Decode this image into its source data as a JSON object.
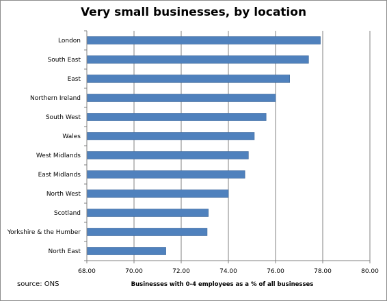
{
  "chart_data": {
    "type": "bar",
    "orientation": "horizontal",
    "title": "Very small businesses, by location",
    "xlabel": "Businesses with 0-4 employees as a % of all businesses",
    "ylabel": "",
    "source": "source: ONS",
    "categories": [
      "London",
      "South East",
      "East",
      "Northern Ireland",
      "South West",
      "Wales",
      "West Midlands",
      "East Midlands",
      "North West",
      "Scotland",
      "Yorkshire & the Humber",
      "North East"
    ],
    "values": [
      77.9,
      77.4,
      76.6,
      76.0,
      75.6,
      75.1,
      74.85,
      74.7,
      74.0,
      73.15,
      73.1,
      71.35
    ],
    "xlim": [
      68,
      80
    ],
    "xticks": [
      68,
      70,
      72,
      74,
      76,
      78,
      80
    ],
    "xtick_labels": [
      "68.00",
      "70.00",
      "72.00",
      "74.00",
      "76.00",
      "78.00",
      "80.00"
    ],
    "grid": "vertical",
    "legend": "none",
    "bar_color": "#4f81bd",
    "bar_edge_color": "#3a6598"
  }
}
